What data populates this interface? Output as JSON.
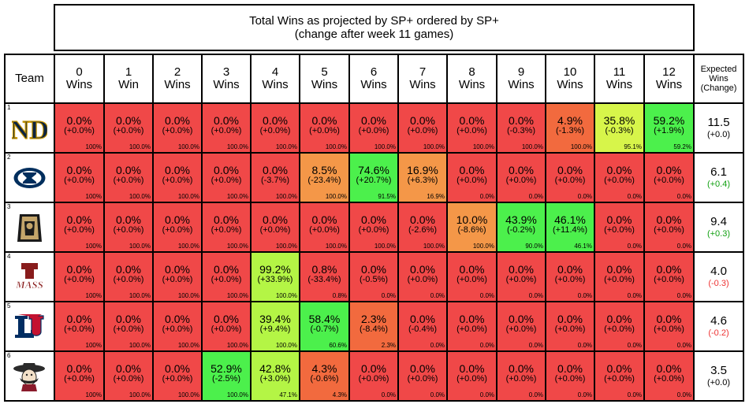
{
  "title": {
    "line1": "Total Wins as projected by SP+ ordered by SP+",
    "line2": "(change after week 11 games)"
  },
  "header": {
    "team": "Team",
    "columns": [
      {
        "num": "0",
        "word": "Wins"
      },
      {
        "num": "1",
        "word": "Win"
      },
      {
        "num": "2",
        "word": "Wins"
      },
      {
        "num": "3",
        "word": "Wins"
      },
      {
        "num": "4",
        "word": "Wins"
      },
      {
        "num": "5",
        "word": "Wins"
      },
      {
        "num": "6",
        "word": "Wins"
      },
      {
        "num": "7",
        "word": "Wins"
      },
      {
        "num": "8",
        "word": "Wins"
      },
      {
        "num": "9",
        "word": "Wins"
      },
      {
        "num": "10",
        "word": "Wins"
      },
      {
        "num": "11",
        "word": "Wins"
      },
      {
        "num": "12",
        "word": "Wins"
      }
    ],
    "expected": [
      "Expected",
      "Wins",
      "(Change)"
    ]
  },
  "colors": {
    "red": "#f04848",
    "orange_red": "#f26a3e",
    "orange": "#f49748",
    "lime": "#d7f54a",
    "yellow_green": "#b4f545",
    "green": "#4cf04c",
    "positive": "#11a011",
    "negative": "#ee3333"
  },
  "chart_data": {
    "type": "table",
    "rows": [
      {
        "rank": "1",
        "logo": "notre-dame-logo",
        "cells": [
          {
            "p": "0.0%",
            "c": "(+0.0%)",
            "cum": "100%",
            "color": "#f04848"
          },
          {
            "p": "0.0%",
            "c": "(+0.0%)",
            "cum": "100.0%",
            "color": "#f04848"
          },
          {
            "p": "0.0%",
            "c": "(+0.0%)",
            "cum": "100.0%",
            "color": "#f04848"
          },
          {
            "p": "0.0%",
            "c": "(+0.0%)",
            "cum": "100.0%",
            "color": "#f04848"
          },
          {
            "p": "0.0%",
            "c": "(+0.0%)",
            "cum": "100.0%",
            "color": "#f04848"
          },
          {
            "p": "0.0%",
            "c": "(+0.0%)",
            "cum": "100.0%",
            "color": "#f04848"
          },
          {
            "p": "0.0%",
            "c": "(+0.0%)",
            "cum": "100.0%",
            "color": "#f04848"
          },
          {
            "p": "0.0%",
            "c": "(+0.0%)",
            "cum": "100.0%",
            "color": "#f04848"
          },
          {
            "p": "0.0%",
            "c": "(+0.0%)",
            "cum": "100.0%",
            "color": "#f04848"
          },
          {
            "p": "0.0%",
            "c": "(-0.3%)",
            "cum": "100.0%",
            "color": "#f04848"
          },
          {
            "p": "4.9%",
            "c": "(-1.3%)",
            "cum": "100.0%",
            "color": "#f26a3e"
          },
          {
            "p": "35.8%",
            "c": "(-0.3%)",
            "cum": "95.1%",
            "color": "#d7f54a"
          },
          {
            "p": "59.2%",
            "c": "(+1.9%)",
            "cum": "59.2%",
            "color": "#4cf04c"
          }
        ],
        "expected": "11.5",
        "expected_change": "(+0.0)",
        "change_color": "#000000"
      },
      {
        "rank": "2",
        "logo": "byu-logo",
        "cells": [
          {
            "p": "0.0%",
            "c": "(+0.0%)",
            "cum": "100%",
            "color": "#f04848"
          },
          {
            "p": "0.0%",
            "c": "(+0.0%)",
            "cum": "100.0%",
            "color": "#f04848"
          },
          {
            "p": "0.0%",
            "c": "(+0.0%)",
            "cum": "100.0%",
            "color": "#f04848"
          },
          {
            "p": "0.0%",
            "c": "(+0.0%)",
            "cum": "100.0%",
            "color": "#f04848"
          },
          {
            "p": "0.0%",
            "c": "(-3.7%)",
            "cum": "100.0%",
            "color": "#f04848"
          },
          {
            "p": "8.5%",
            "c": "(-23.4%)",
            "cum": "100.0%",
            "color": "#f49748"
          },
          {
            "p": "74.6%",
            "c": "(+20.7%)",
            "cum": "91.5%",
            "color": "#4cf04c"
          },
          {
            "p": "16.9%",
            "c": "(+6.3%)",
            "cum": "16.9%",
            "color": "#f49748"
          },
          {
            "p": "0.0%",
            "c": "(+0.0%)",
            "cum": "0.0%",
            "color": "#f04848"
          },
          {
            "p": "0.0%",
            "c": "(+0.0%)",
            "cum": "0.0%",
            "color": "#f04848"
          },
          {
            "p": "0.0%",
            "c": "(+0.0%)",
            "cum": "0.0%",
            "color": "#f04848"
          },
          {
            "p": "0.0%",
            "c": "(+0.0%)",
            "cum": "0.0%",
            "color": "#f04848"
          },
          {
            "p": "0.0%",
            "c": "(+0.0%)",
            "cum": "0.0%",
            "color": "#f04848"
          }
        ],
        "expected": "6.1",
        "expected_change": "(+0.4)",
        "change_color": "#11a011"
      },
      {
        "rank": "3",
        "logo": "army-logo",
        "cells": [
          {
            "p": "0.0%",
            "c": "(+0.0%)",
            "cum": "100%",
            "color": "#f04848"
          },
          {
            "p": "0.0%",
            "c": "(+0.0%)",
            "cum": "100.0%",
            "color": "#f04848"
          },
          {
            "p": "0.0%",
            "c": "(+0.0%)",
            "cum": "100.0%",
            "color": "#f04848"
          },
          {
            "p": "0.0%",
            "c": "(+0.0%)",
            "cum": "100.0%",
            "color": "#f04848"
          },
          {
            "p": "0.0%",
            "c": "(+0.0%)",
            "cum": "100.0%",
            "color": "#f04848"
          },
          {
            "p": "0.0%",
            "c": "(+0.0%)",
            "cum": "100.0%",
            "color": "#f04848"
          },
          {
            "p": "0.0%",
            "c": "(+0.0%)",
            "cum": "100.0%",
            "color": "#f04848"
          },
          {
            "p": "0.0%",
            "c": "(-2.6%)",
            "cum": "100.0%",
            "color": "#f04848"
          },
          {
            "p": "10.0%",
            "c": "(-8.6%)",
            "cum": "100.0%",
            "color": "#f49748"
          },
          {
            "p": "43.9%",
            "c": "(-0.2%)",
            "cum": "90.0%",
            "color": "#4cf04c"
          },
          {
            "p": "46.1%",
            "c": "(+11.4%)",
            "cum": "46.1%",
            "color": "#4cf04c"
          },
          {
            "p": "0.0%",
            "c": "(+0.0%)",
            "cum": "0.0%",
            "color": "#f04848"
          },
          {
            "p": "0.0%",
            "c": "(+0.0%)",
            "cum": "0.0%",
            "color": "#f04848"
          }
        ],
        "expected": "9.4",
        "expected_change": "(+0.3)",
        "change_color": "#11a011"
      },
      {
        "rank": "4",
        "logo": "umass-logo",
        "cells": [
          {
            "p": "0.0%",
            "c": "(+0.0%)",
            "cum": "100%",
            "color": "#f04848"
          },
          {
            "p": "0.0%",
            "c": "(+0.0%)",
            "cum": "100.0%",
            "color": "#f04848"
          },
          {
            "p": "0.0%",
            "c": "(+0.0%)",
            "cum": "100.0%",
            "color": "#f04848"
          },
          {
            "p": "0.0%",
            "c": "(+0.0%)",
            "cum": "100.0%",
            "color": "#f04848"
          },
          {
            "p": "99.2%",
            "c": "(+33.9%)",
            "cum": "100.0%",
            "color": "#b4f545"
          },
          {
            "p": "0.8%",
            "c": "(-33.4%)",
            "cum": "0.8%",
            "color": "#f04848"
          },
          {
            "p": "0.0%",
            "c": "(-0.5%)",
            "cum": "0.0%",
            "color": "#f04848"
          },
          {
            "p": "0.0%",
            "c": "(+0.0%)",
            "cum": "0.0%",
            "color": "#f04848"
          },
          {
            "p": "0.0%",
            "c": "(+0.0%)",
            "cum": "0.0%",
            "color": "#f04848"
          },
          {
            "p": "0.0%",
            "c": "(+0.0%)",
            "cum": "0.0%",
            "color": "#f04848"
          },
          {
            "p": "0.0%",
            "c": "(+0.0%)",
            "cum": "0.0%",
            "color": "#f04848"
          },
          {
            "p": "0.0%",
            "c": "(+0.0%)",
            "cum": "0.0%",
            "color": "#f04848"
          },
          {
            "p": "0.0%",
            "c": "(+0.0%)",
            "cum": "0.0%",
            "color": "#f04848"
          }
        ],
        "expected": "4.0",
        "expected_change": "(-0.3)",
        "change_color": "#ee3333"
      },
      {
        "rank": "5",
        "logo": "liberty-logo",
        "cells": [
          {
            "p": "0.0%",
            "c": "(+0.0%)",
            "cum": "100%",
            "color": "#f04848"
          },
          {
            "p": "0.0%",
            "c": "(+0.0%)",
            "cum": "100.0%",
            "color": "#f04848"
          },
          {
            "p": "0.0%",
            "c": "(+0.0%)",
            "cum": "100.0%",
            "color": "#f04848"
          },
          {
            "p": "0.0%",
            "c": "(+0.0%)",
            "cum": "100.0%",
            "color": "#f04848"
          },
          {
            "p": "39.4%",
            "c": "(+9.4%)",
            "cum": "100.0%",
            "color": "#b4f545"
          },
          {
            "p": "58.4%",
            "c": "(-0.7%)",
            "cum": "60.6%",
            "color": "#4cf04c"
          },
          {
            "p": "2.3%",
            "c": "(-8.4%)",
            "cum": "2.3%",
            "color": "#f26a3e"
          },
          {
            "p": "0.0%",
            "c": "(-0.4%)",
            "cum": "0.0%",
            "color": "#f04848"
          },
          {
            "p": "0.0%",
            "c": "(+0.0%)",
            "cum": "0.0%",
            "color": "#f04848"
          },
          {
            "p": "0.0%",
            "c": "(+0.0%)",
            "cum": "0.0%",
            "color": "#f04848"
          },
          {
            "p": "0.0%",
            "c": "(+0.0%)",
            "cum": "0.0%",
            "color": "#f04848"
          },
          {
            "p": "0.0%",
            "c": "(+0.0%)",
            "cum": "0.0%",
            "color": "#f04848"
          },
          {
            "p": "0.0%",
            "c": "(+0.0%)",
            "cum": "0.0%",
            "color": "#f04848"
          }
        ],
        "expected": "4.6",
        "expected_change": "(-0.2)",
        "change_color": "#ee3333"
      },
      {
        "rank": "6",
        "logo": "new-mexico-state-logo",
        "cells": [
          {
            "p": "0.0%",
            "c": "(+0.0%)",
            "cum": "100%",
            "color": "#f04848"
          },
          {
            "p": "0.0%",
            "c": "(+0.0%)",
            "cum": "100.0%",
            "color": "#f04848"
          },
          {
            "p": "0.0%",
            "c": "(+0.0%)",
            "cum": "100.0%",
            "color": "#f04848"
          },
          {
            "p": "52.9%",
            "c": "(-2.5%)",
            "cum": "100.0%",
            "color": "#4cf04c"
          },
          {
            "p": "42.8%",
            "c": "(+3.0%)",
            "cum": "47.1%",
            "color": "#b4f545"
          },
          {
            "p": "4.3%",
            "c": "(-0.6%)",
            "cum": "4.3%",
            "color": "#f26a3e"
          },
          {
            "p": "0.0%",
            "c": "(+0.0%)",
            "cum": "0.0%",
            "color": "#f04848"
          },
          {
            "p": "0.0%",
            "c": "(+0.0%)",
            "cum": "0.0%",
            "color": "#f04848"
          },
          {
            "p": "0.0%",
            "c": "(+0.0%)",
            "cum": "0.0%",
            "color": "#f04848"
          },
          {
            "p": "0.0%",
            "c": "(+0.0%)",
            "cum": "0.0%",
            "color": "#f04848"
          },
          {
            "p": "0.0%",
            "c": "(+0.0%)",
            "cum": "0.0%",
            "color": "#f04848"
          },
          {
            "p": "0.0%",
            "c": "(+0.0%)",
            "cum": "0.0%",
            "color": "#f04848"
          },
          {
            "p": "0.0%",
            "c": "(+0.0%)",
            "cum": "0.0%",
            "color": "#f04848"
          }
        ],
        "expected": "3.5",
        "expected_change": "(+0.0)",
        "change_color": "#000000"
      }
    ]
  }
}
